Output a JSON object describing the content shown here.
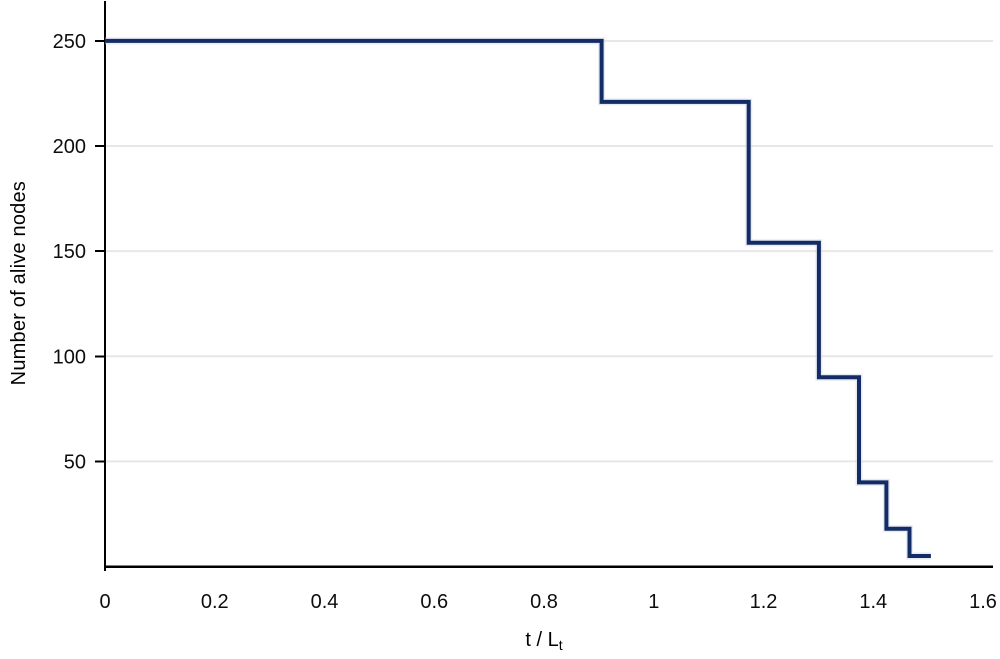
{
  "chart_data": {
    "type": "line",
    "subtype": "step-after",
    "title": "",
    "ylabel": "Number of alive nodes",
    "xlabel": {
      "main": "t / L",
      "sub": "t"
    },
    "xlim": [
      0,
      1.6
    ],
    "ylim": [
      0,
      269
    ],
    "x_ticks": [
      0,
      0.2,
      0.4,
      0.6,
      0.8,
      1,
      1.2,
      1.4,
      1.6
    ],
    "x_tick_labels": [
      "0",
      "0.2",
      "0.4",
      "0.6",
      "0.8",
      "1",
      "1.2",
      "1.4",
      "1.6"
    ],
    "y_ticks": [
      50,
      100,
      150,
      200,
      250
    ],
    "y_tick_labels": [
      "50",
      "100",
      "150",
      "200",
      "250"
    ],
    "grid": "horizontal",
    "legend_position": "none",
    "series": [
      {
        "name": "Number of alive nodes",
        "color": "#142c66",
        "steps": [
          {
            "from": 0,
            "to": 0.905,
            "value": 250
          },
          {
            "from": 0.905,
            "to": 1.173,
            "value": 221
          },
          {
            "from": 1.173,
            "to": 1.301,
            "value": 154
          },
          {
            "from": 1.301,
            "to": 1.374,
            "value": 90
          },
          {
            "from": 1.374,
            "to": 1.424,
            "value": 40
          },
          {
            "from": 1.424,
            "to": 1.466,
            "value": 18
          },
          {
            "from": 1.466,
            "to": 1.505,
            "value": 5
          }
        ]
      }
    ]
  },
  "colors": {
    "line": "#142c66",
    "line_halo": "#c7d0e2",
    "grid": "#e7e7e7",
    "axis": "#000000",
    "text": "#0d0d0d"
  }
}
